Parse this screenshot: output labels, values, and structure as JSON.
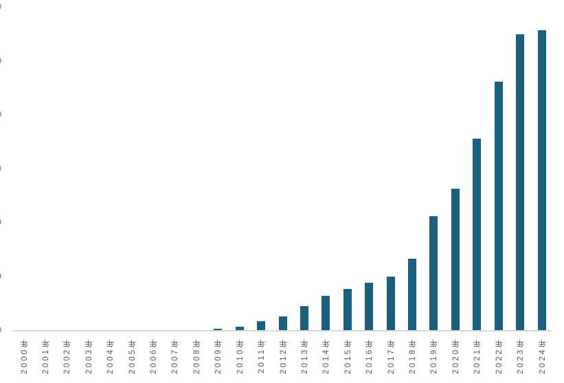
{
  "chart_data": {
    "type": "bar",
    "title": "",
    "xlabel": "",
    "ylabel": "",
    "categories": [
      "2000年",
      "2001年",
      "2002年",
      "2003年",
      "2004年",
      "2005年",
      "2006年",
      "2007年",
      "2008年",
      "2009年",
      "2010年",
      "2011年",
      "2012年",
      "2013年",
      "2014年",
      "2015年",
      "2016年",
      "2017年",
      "2018年",
      "2019年",
      "2020年",
      "2021年",
      "2022年",
      "2023年",
      "2024年"
    ],
    "values": [
      0,
      0,
      0,
      0,
      0,
      0,
      0,
      0,
      0,
      0.02,
      0.06,
      0.17,
      0.26,
      0.44,
      0.64,
      0.77,
      0.88,
      1.0,
      1.32,
      2.11,
      2.63,
      3.55,
      4.61,
      5.49,
      5.57
    ],
    "ylim": [
      0,
      6
    ],
    "y_tick_count": 7,
    "y_tick_labels_cropped": true,
    "y_tick_sliver_glyph": "0",
    "grid": false,
    "legend": false,
    "colors": {
      "bar": "#195F80",
      "axis_line": "#D9D9D9",
      "tick_label": "#595959"
    }
  }
}
